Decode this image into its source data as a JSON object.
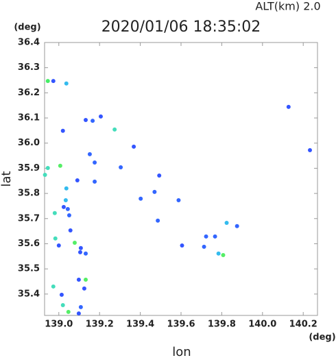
{
  "chart_data": {
    "type": "scatter",
    "title": "2020/01/06 18:35:02",
    "altitude_label": "ALT(km)  2.0",
    "y_unit": "(deg)",
    "x_unit": "(deg)",
    "xlabel": "lon",
    "ylabel": "lat",
    "xlim": [
      138.93,
      140.27
    ],
    "ylim": [
      35.315,
      36.4
    ],
    "xticks": [
      {
        "value": 139,
        "label": "139.0"
      },
      139.2,
      139.4,
      139.6,
      139.8,
      {
        "value": 140,
        "label": "140.0"
      },
      140.2
    ],
    "yticks": [
      35.4,
      35.5,
      35.6,
      35.7,
      35.8,
      35.9,
      {
        "value": 36,
        "label": "36.0"
      },
      36.1,
      36.2,
      36.3,
      36.4
    ],
    "grid": false,
    "x": [
      138.946,
      138.973,
      139.037,
      139.02,
      139.132,
      139.166,
      139.206,
      139.274,
      139.368,
      139.152,
      139.176,
      139.304,
      139.493,
      139.176,
      139.091,
      139.007,
      138.946,
      138.932,
      139.037,
      139.034,
      139.024,
      139.044,
      138.98,
      139.051,
      139.057,
      138.983,
      139.0,
      139.078,
      139.108,
      139.105,
      139.132,
      139.486,
      139.588,
      139.605,
      139.723,
      139.713,
      139.767,
      139.784,
      139.807,
      139.824,
      139.875,
      140.128,
      140.233,
      138.973,
      139.098,
      139.132,
      139.125,
      139.014,
      139.02,
      139.047,
      139.098,
      139.108,
      139.47,
      139.402
    ],
    "y": [
      36.247,
      36.247,
      36.237,
      36.049,
      36.092,
      36.089,
      36.106,
      36.054,
      35.986,
      35.956,
      35.923,
      35.904,
      35.871,
      35.847,
      35.852,
      35.91,
      35.901,
      35.874,
      35.82,
      35.773,
      35.746,
      35.738,
      35.722,
      35.713,
      35.653,
      35.621,
      35.593,
      35.604,
      35.583,
      35.566,
      35.561,
      35.692,
      35.773,
      35.593,
      35.629,
      35.588,
      35.629,
      35.561,
      35.555,
      35.683,
      35.67,
      36.144,
      35.972,
      35.43,
      35.457,
      35.457,
      35.422,
      35.397,
      35.356,
      35.329,
      35.323,
      35.348,
      35.806,
      35.779
    ],
    "colors": [
      "#44ee66",
      "#3355ff",
      "#33bbee",
      "#3355ff",
      "#3355ff",
      "#3366ff",
      "#3355ff",
      "#44ddbb",
      "#3355ff",
      "#3366ff",
      "#3366ff",
      "#3366ff",
      "#3355ff",
      "#3366ff",
      "#3355ff",
      "#55ee66",
      "#44ddbb",
      "#44ddbb",
      "#33bbee",
      "#33bbee",
      "#3355ff",
      "#3366ff",
      "#44ddbb",
      "#3366ff",
      "#3355ff",
      "#44ddbb",
      "#3355ff",
      "#55ee66",
      "#3355ff",
      "#3355ff",
      "#3366ff",
      "#3366ff",
      "#3366ff",
      "#3355ff",
      "#3366ff",
      "#3366ff",
      "#3366ff",
      "#33bbee",
      "#55ee66",
      "#33bbee",
      "#3366ff",
      "#3355ff",
      "#3355ff",
      "#44ddbb",
      "#3355ff",
      "#55ee66",
      "#3355ff",
      "#3355ff",
      "#44ddbb",
      "#55ee66",
      "#3355ff",
      "#3366ff",
      "#3366ff",
      "#3366ff"
    ]
  }
}
